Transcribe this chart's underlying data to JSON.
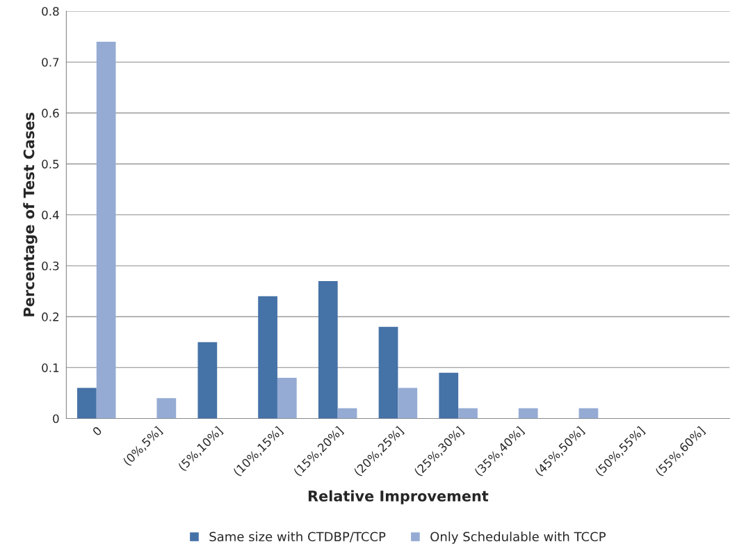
{
  "chart_data": {
    "type": "bar",
    "xlabel": "Relative Improvement",
    "ylabel": "Percentage of Test Cases",
    "categories": [
      "0",
      "(0%,5%]",
      "(5%,10%]",
      "(10%,15%]",
      "(15%,20%]",
      "(20%,25%]",
      "(25%,30%]",
      "(35%,40%]",
      "(45%,50%]",
      "(50%,55%]",
      "(55%,60%]"
    ],
    "series": [
      {
        "name": "Same size with CTDBP/TCCP",
        "color": "#4572a7",
        "values": [
          0.06,
          0,
          0.15,
          0.24,
          0.27,
          0.18,
          0.09,
          0,
          0,
          0,
          0
        ]
      },
      {
        "name": "Only Schedulable with TCCP",
        "color": "#95abd3",
        "values": [
          0.74,
          0.04,
          0,
          0.08,
          0.02,
          0.06,
          0.02,
          0.02,
          0.02,
          0,
          0
        ]
      }
    ],
    "ylim": [
      0,
      0.8
    ],
    "yticks": [
      0,
      0.1,
      0.2,
      0.3,
      0.4,
      0.5,
      0.6,
      0.7,
      0.8
    ],
    "grid": "y",
    "legend": "bottom"
  }
}
